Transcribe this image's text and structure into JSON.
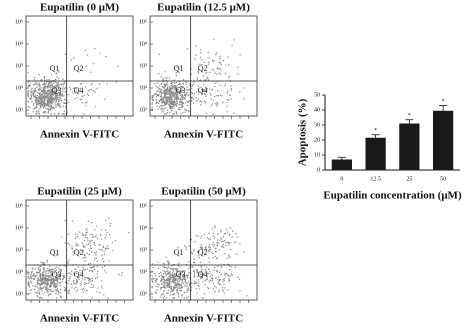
{
  "panels": [
    {
      "title": "Eupatilin (0 μM)",
      "x_label": "Annexin V-FITC",
      "quadrants": [
        "Q1",
        "Q2",
        "Q3",
        "Q4"
      ],
      "yticks": [
        "10⁵",
        "10⁴",
        "10³",
        "10²",
        "10¹"
      ]
    },
    {
      "title": "Eupatilin (12.5 μM)",
      "x_label": "Annexin V-FITC",
      "quadrants": [
        "Q1",
        "Q2",
        "Q3",
        "Q4"
      ],
      "yticks": [
        "10⁵",
        "10⁴",
        "10³",
        "10²",
        "10¹"
      ]
    },
    {
      "title": "Eupatilin (25 μM)",
      "x_label": "Annexin V-FITC",
      "quadrants": [
        "Q1",
        "Q2",
        "Q3",
        "Q4"
      ],
      "yticks": [
        "10⁵",
        "10⁴",
        "10³",
        "10²",
        "10¹"
      ]
    },
    {
      "title": "Eupatilin (50 μM)",
      "x_label": "Annexin V-FITC",
      "quadrants": [
        "Q1",
        "Q2",
        "Q3",
        "Q4"
      ],
      "yticks": [
        "10⁵",
        "10⁴",
        "10³",
        "10²",
        "10¹"
      ]
    }
  ],
  "chart_data": {
    "type": "bar",
    "y_label": "Apoptosis (%)",
    "x_label": "Eupatilin concentration (μM)",
    "categories": [
      "0",
      "12.5",
      "25",
      "50"
    ],
    "values": [
      7,
      21.5,
      31,
      39.5
    ],
    "errors": [
      1.5,
      2,
      2.5,
      3.5
    ],
    "significance": [
      null,
      "*",
      "*",
      "*"
    ],
    "color": "#1a1a1a",
    "ylim": [
      0,
      50
    ],
    "yticks": [
      0,
      10,
      20,
      30,
      40,
      50
    ]
  }
}
